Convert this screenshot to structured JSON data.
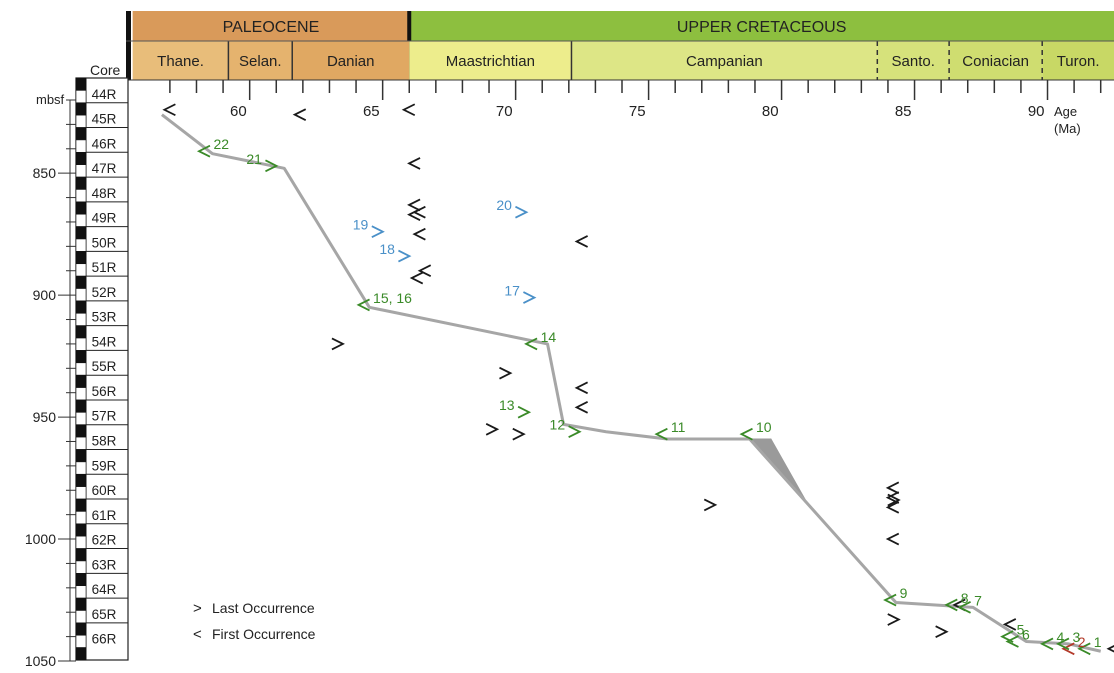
{
  "chart_data": {
    "type": "scatter",
    "x_axis": {
      "label_line1": "Age",
      "label_line2": "(Ma)",
      "range": [
        55.5,
        92.5
      ],
      "ticks": [
        {
          "value": 60,
          "label": "60"
        },
        {
          "value": 65,
          "label": "65"
        },
        {
          "value": 70,
          "label": "70"
        },
        {
          "value": 75,
          "label": "75"
        },
        {
          "value": 80,
          "label": "80"
        },
        {
          "value": 85,
          "label": "85"
        },
        {
          "value": 90,
          "label": "90"
        }
      ]
    },
    "y_axis": {
      "label": "mbsf",
      "range": [
        820,
        1050
      ],
      "ticks": [
        {
          "value": 850,
          "label": "850"
        },
        {
          "value": 900,
          "label": "900"
        },
        {
          "value": 950,
          "label": "950"
        },
        {
          "value": 1000,
          "label": "1000"
        },
        {
          "value": 1050,
          "label": "1050"
        }
      ]
    },
    "epochs": [
      {
        "name": "PALEOCENE",
        "start": 55.6,
        "end": 66.0,
        "color": "#d99a5a"
      },
      {
        "name": "UPPER CRETACEOUS",
        "start": 66.0,
        "end": 92.5,
        "color": "#8dbf3f"
      }
    ],
    "stages": [
      {
        "name": "Thane.",
        "start": 55.6,
        "end": 59.2,
        "color": "#e8bd7a"
      },
      {
        "name": "Selan.",
        "start": 59.2,
        "end": 61.6,
        "color": "#e5b36e"
      },
      {
        "name": "Danian",
        "start": 61.6,
        "end": 66.0,
        "color": "#e0a862"
      },
      {
        "name": "Maastrichtian",
        "start": 66.0,
        "end": 72.1,
        "color": "#eded8c"
      },
      {
        "name": "Campanian",
        "start": 72.1,
        "end": 83.6,
        "color": "#dde686"
      },
      {
        "name": "Santo.",
        "start": 83.6,
        "end": 86.3,
        "color": "#d6e27b"
      },
      {
        "name": "Coniacian",
        "start": 86.3,
        "end": 89.8,
        "color": "#cfdd70"
      },
      {
        "name": "Turon.",
        "start": 89.8,
        "end": 92.5,
        "color": "#c8d865"
      }
    ],
    "core_header": "Core",
    "cores": [
      "44R",
      "45R",
      "46R",
      "47R",
      "48R",
      "49R",
      "50R",
      "51R",
      "52R",
      "53R",
      "54R",
      "55R",
      "56R",
      "57R",
      "58R",
      "59R",
      "60R",
      "61R",
      "62R",
      "63R",
      "64R",
      "65R",
      "66R"
    ],
    "age_depth_line": [
      {
        "x": 56.7,
        "y": 826
      },
      {
        "x": 58.6,
        "y": 842
      },
      {
        "x": 61.3,
        "y": 848
      },
      {
        "x": 64.5,
        "y": 905
      },
      {
        "x": 71.2,
        "y": 920
      },
      {
        "x": 71.8,
        "y": 953
      },
      {
        "x": 73.4,
        "y": 956
      },
      {
        "x": 75.7,
        "y": 959
      },
      {
        "x": 78.8,
        "y": 959
      },
      {
        "x": 84.3,
        "y": 1026
      },
      {
        "x": 87.2,
        "y": 1028
      },
      {
        "x": 89.2,
        "y": 1042
      },
      {
        "x": 90.8,
        "y": 1043
      },
      {
        "x": 92.0,
        "y": 1046
      }
    ],
    "uncertainty_wedge": [
      {
        "x": 78.8,
        "y": 959
      },
      {
        "x": 79.6,
        "y": 959
      },
      {
        "x": 81.0,
        "y": 986
      }
    ],
    "datums": [
      {
        "label": "1",
        "type": "first",
        "x": 91.4,
        "y": 1045,
        "color": "#3a8a28"
      },
      {
        "label": "2",
        "type": "first",
        "x": 90.8,
        "y": 1045,
        "color": "#b33a2a"
      },
      {
        "label": "3",
        "type": "first",
        "x": 90.6,
        "y": 1043,
        "color": "#3a8a28"
      },
      {
        "label": "4",
        "type": "first",
        "x": 90.0,
        "y": 1043,
        "color": "#3a8a28"
      },
      {
        "label": "5",
        "type": "first",
        "x": 88.5,
        "y": 1040,
        "color": "#3a8a28"
      },
      {
        "label": "6",
        "type": "first",
        "x": 88.7,
        "y": 1042,
        "color": "#3a8a28"
      },
      {
        "label": "7",
        "type": "first",
        "x": 86.9,
        "y": 1028,
        "color": "#3a8a28"
      },
      {
        "label": "8",
        "type": "first",
        "x": 86.4,
        "y": 1027,
        "color": "#3a8a28"
      },
      {
        "label": "9",
        "type": "first",
        "x": 84.1,
        "y": 1025,
        "color": "#3a8a28"
      },
      {
        "label": "10",
        "type": "first",
        "x": 78.7,
        "y": 957,
        "color": "#3a8a28"
      },
      {
        "label": "11",
        "type": "first",
        "x": 75.5,
        "y": 957,
        "color": "#3a8a28"
      },
      {
        "label": "12",
        "type": "last",
        "x": 72.2,
        "y": 956,
        "color": "#3a8a28"
      },
      {
        "label": "13",
        "type": "last",
        "x": 70.3,
        "y": 948,
        "color": "#3a8a28"
      },
      {
        "label": "14",
        "type": "first",
        "x": 70.6,
        "y": 920,
        "color": "#3a8a28"
      },
      {
        "label": "15, 16",
        "type": "first",
        "x": 64.3,
        "y": 904,
        "color": "#3a8a28"
      },
      {
        "label": "17",
        "type": "last",
        "x": 70.5,
        "y": 901,
        "color": "#4a90c8"
      },
      {
        "label": "18",
        "type": "last",
        "x": 65.8,
        "y": 884,
        "color": "#4a90c8"
      },
      {
        "label": "19",
        "type": "last",
        "x": 64.8,
        "y": 874,
        "color": "#4a90c8"
      },
      {
        "label": "20",
        "type": "last",
        "x": 70.2,
        "y": 866,
        "color": "#4a90c8"
      },
      {
        "label": "21",
        "type": "last",
        "x": 60.8,
        "y": 847,
        "color": "#3a8a28"
      },
      {
        "label": "22",
        "type": "first",
        "x": 58.3,
        "y": 841,
        "color": "#3a8a28"
      }
    ],
    "unlabeled_markers": [
      {
        "type": "first",
        "x": 57.0,
        "y": 824
      },
      {
        "type": "first",
        "x": 61.9,
        "y": 826
      },
      {
        "type": "first",
        "x": 66.0,
        "y": 824
      },
      {
        "type": "first",
        "x": 66.2,
        "y": 846
      },
      {
        "type": "first",
        "x": 66.2,
        "y": 863
      },
      {
        "type": "first",
        "x": 66.2,
        "y": 867
      },
      {
        "type": "first",
        "x": 66.4,
        "y": 866
      },
      {
        "type": "first",
        "x": 66.4,
        "y": 875
      },
      {
        "type": "first",
        "x": 66.6,
        "y": 890
      },
      {
        "type": "first",
        "x": 66.3,
        "y": 893
      },
      {
        "type": "first",
        "x": 72.5,
        "y": 878
      },
      {
        "type": "first",
        "x": 72.5,
        "y": 938
      },
      {
        "type": "first",
        "x": 72.5,
        "y": 946
      },
      {
        "type": "first",
        "x": 84.2,
        "y": 979
      },
      {
        "type": "first",
        "x": 84.2,
        "y": 983
      },
      {
        "type": "first",
        "x": 84.2,
        "y": 987
      },
      {
        "type": "first",
        "x": 84.2,
        "y": 1000
      },
      {
        "type": "first",
        "x": 86.7,
        "y": 1027
      },
      {
        "type": "first",
        "x": 88.6,
        "y": 1035
      },
      {
        "type": "first",
        "x": 92.5,
        "y": 1045
      },
      {
        "type": "last",
        "x": 63.3,
        "y": 920
      },
      {
        "type": "last",
        "x": 69.6,
        "y": 932
      },
      {
        "type": "last",
        "x": 69.1,
        "y": 955
      },
      {
        "type": "last",
        "x": 70.1,
        "y": 957
      },
      {
        "type": "last",
        "x": 77.3,
        "y": 986
      },
      {
        "type": "last",
        "x": 84.2,
        "y": 984
      },
      {
        "type": "last",
        "x": 84.2,
        "y": 1033
      },
      {
        "type": "last",
        "x": 86.0,
        "y": 1038
      }
    ],
    "legend": {
      "position": "bottom-left",
      "items": [
        {
          "symbol": ">",
          "label": "Last Occurrence"
        },
        {
          "symbol": "<",
          "label": "First Occurrence"
        }
      ]
    }
  }
}
